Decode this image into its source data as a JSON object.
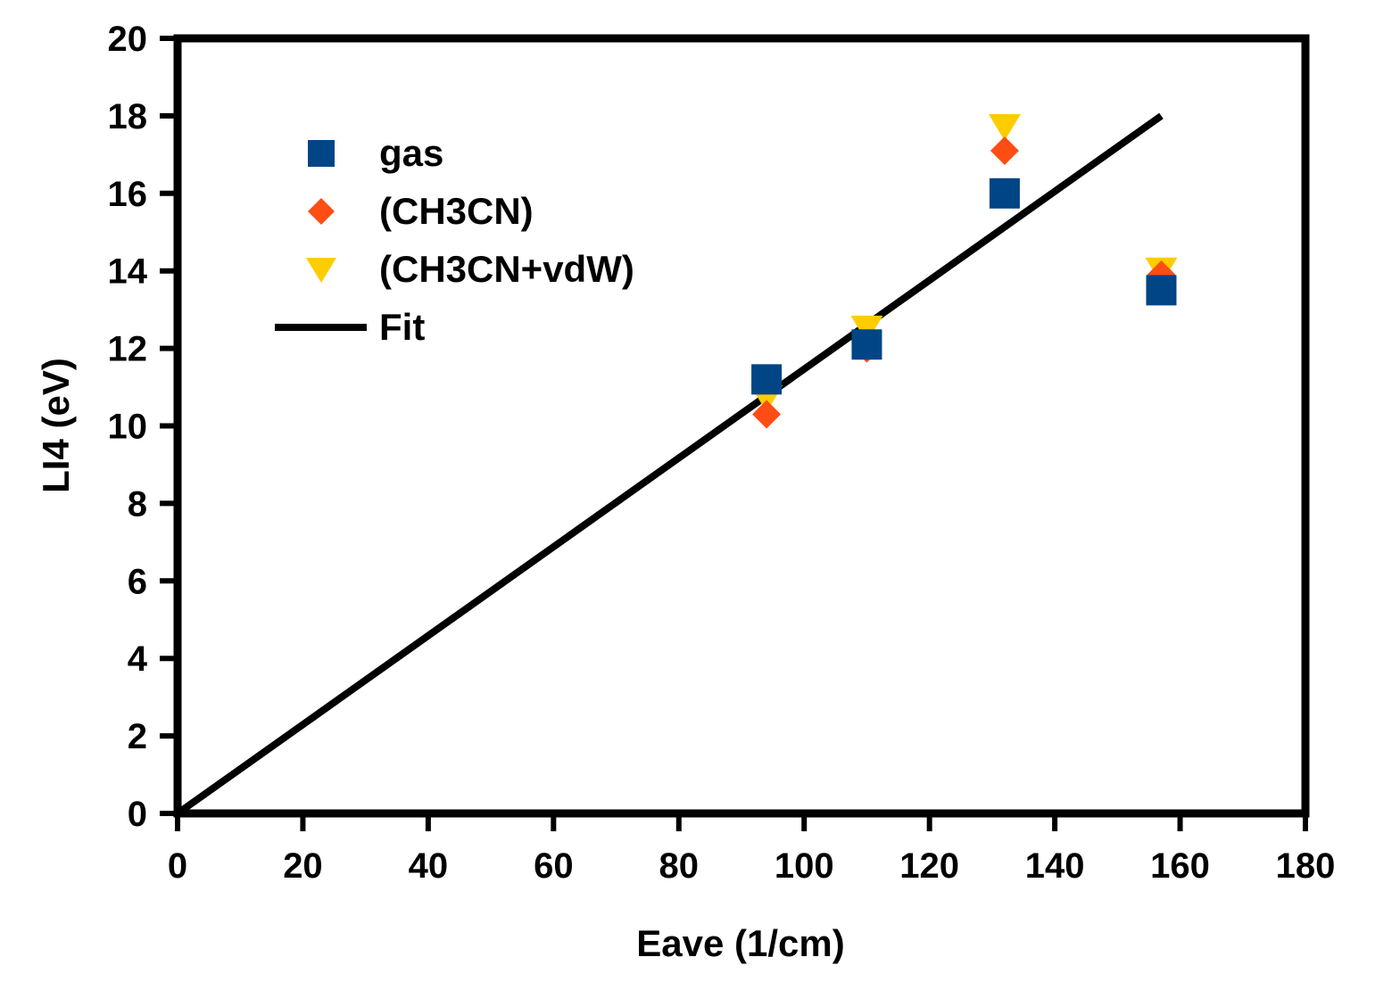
{
  "chart_data": {
    "type": "scatter",
    "title": "",
    "xlabel": "Eave (1/cm)",
    "ylabel": "LI4 (eV)",
    "xlim": [
      0,
      180
    ],
    "ylim": [
      0,
      20
    ],
    "xticks": [
      0,
      20,
      40,
      60,
      80,
      100,
      120,
      140,
      160,
      180
    ],
    "yticks": [
      0,
      2,
      4,
      6,
      8,
      10,
      12,
      14,
      16,
      18,
      20
    ],
    "xtick_labels": [
      "0",
      "20",
      "40",
      "60",
      "80",
      "100",
      "120",
      "140",
      "160",
      "180"
    ],
    "ytick_labels": [
      "0",
      "2",
      "4",
      "6",
      "8",
      "10",
      "12",
      "14",
      "16",
      "18",
      "20"
    ],
    "grid": false,
    "legend_position": "top-left",
    "series": [
      {
        "name": "(CH3CN+vdW)",
        "marker": "triangle-down",
        "color": "#FFCC00",
        "x": [
          94,
          110,
          132,
          157
        ],
        "y": [
          10.7,
          12.5,
          17.7,
          14.0
        ]
      },
      {
        "name": "(CH3CN)",
        "marker": "diamond",
        "color": "#FF4D14",
        "x": [
          94,
          110,
          132,
          157
        ],
        "y": [
          10.3,
          12.0,
          17.1,
          13.9
        ]
      },
      {
        "name": "gas",
        "marker": "square",
        "color": "#004586",
        "x": [
          94,
          110,
          132,
          157
        ],
        "y": [
          11.2,
          12.1,
          16.0,
          13.5
        ]
      }
    ],
    "fit": {
      "name": "Fit",
      "type": "line",
      "color": "#000000",
      "x": [
        0,
        157
      ],
      "y": [
        0,
        18.0
      ]
    },
    "legend": [
      {
        "label": "gas",
        "marker": "square",
        "color": "#004586"
      },
      {
        "label": "(CH3CN)",
        "marker": "diamond",
        "color": "#FF4D14"
      },
      {
        "label": "(CH3CN+vdW)",
        "marker": "triangle-down",
        "color": "#FFCC00"
      },
      {
        "label": "Fit",
        "marker": "line",
        "color": "#000000"
      }
    ]
  }
}
